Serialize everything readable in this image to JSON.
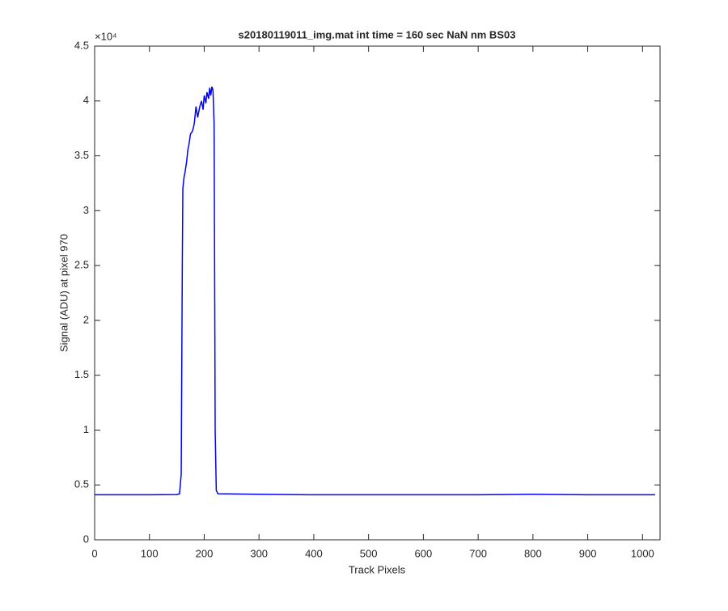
{
  "chart_data": {
    "type": "line",
    "title": "s20180119011_img.mat int time = 160 sec  NaN nm BS03",
    "x_label": "Track Pixels",
    "y_label": "Signal (ADU) at pixel 970",
    "y_exponent": "×10⁴",
    "x": [
      0,
      50,
      100,
      150,
      155,
      158,
      160,
      161,
      163,
      165,
      168,
      170,
      172,
      175,
      178,
      180,
      182,
      185,
      188,
      190,
      192,
      195,
      198,
      200,
      203,
      205,
      208,
      210,
      212,
      214,
      216,
      218,
      219,
      220,
      222,
      225,
      300,
      400,
      500,
      600,
      700,
      800,
      900,
      1000,
      1023
    ],
    "series": [
      {
        "color": "#0000ff",
        "values": [
          0.41,
          0.41,
          0.41,
          0.412,
          0.42,
          0.6,
          2.5,
          3.2,
          3.3,
          3.35,
          3.45,
          3.55,
          3.6,
          3.7,
          3.72,
          3.75,
          3.8,
          3.95,
          3.85,
          3.9,
          3.95,
          4.0,
          3.92,
          4.05,
          3.98,
          4.08,
          4.02,
          4.12,
          4.05,
          4.13,
          4.1,
          3.8,
          2.5,
          1.0,
          0.45,
          0.42,
          0.415,
          0.41,
          0.41,
          0.41,
          0.41,
          0.415,
          0.41,
          0.41,
          0.41
        ]
      }
    ],
    "xlim": [
      0,
      1032
    ],
    "ylim": [
      0,
      4.5
    ],
    "xticks": [
      0,
      100,
      200,
      300,
      400,
      500,
      600,
      700,
      800,
      900,
      1000
    ],
    "yticks": [
      0,
      0.5,
      1,
      1.5,
      2,
      2.5,
      3,
      3.5,
      4,
      4.5
    ],
    "grid": false
  }
}
